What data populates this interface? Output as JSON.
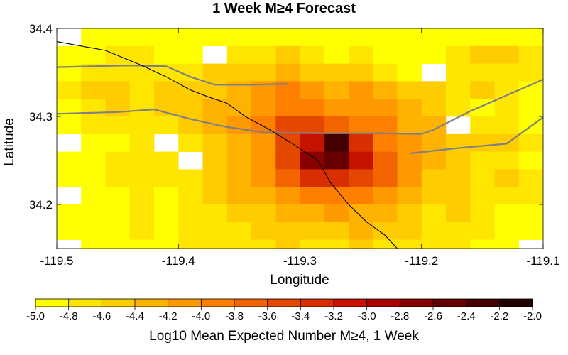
{
  "chart_data": {
    "type": "heatmap",
    "title": "1 Week M≥4 Forecast",
    "xlabel": "Longitude",
    "ylabel": "Latitude",
    "xlim": [
      -119.5,
      -119.1
    ],
    "ylim": [
      34.15,
      34.4
    ],
    "x_ticks": [
      "-119.5",
      "-119.4",
      "-119.3",
      "-119.2",
      "-119.1"
    ],
    "y_ticks": [
      "34.4",
      "34.3",
      "34.2"
    ],
    "x_tick_values": [
      -119.5,
      -119.4,
      -119.3,
      -119.2,
      -119.1
    ],
    "y_tick_values": [
      34.4,
      34.3,
      34.2
    ],
    "cell_size_deg": 0.02,
    "colorbar": {
      "label": "Log10 Mean Expected Number M≥4, 1 Week",
      "ticks": [
        "-5.0",
        "-4.8",
        "-4.6",
        "-4.4",
        "-4.2",
        "-4.0",
        "-3.8",
        "-3.6",
        "-3.4",
        "-3.2",
        "-3.0",
        "-2.8",
        "-2.6",
        "-2.4",
        "-2.2",
        "-2.0"
      ],
      "min": -5.0,
      "max": -2.0,
      "step": 0.2,
      "colors": [
        "#ffff00",
        "#ffe600",
        "#ffcc00",
        "#ffb300",
        "#ff9900",
        "#ff7f00",
        "#f36400",
        "#e44800",
        "#d82e00",
        "#c81200",
        "#aa0000",
        "#880000",
        "#660000",
        "#440000",
        "#220000"
      ]
    },
    "grid_note": "rows from north (lat 34.40) to south, columns from west (lon -119.50) to east; value null = no color",
    "grid": [
      [
        null,
        -4.9,
        -4.9,
        -4.9,
        -4.9,
        -4.9,
        -4.9,
        -4.9,
        -4.9,
        -4.9,
        -4.9,
        -4.9,
        -4.9,
        -4.9,
        -4.9,
        -4.9,
        -4.9,
        -4.9,
        -4.9,
        -4.9
      ],
      [
        -4.9,
        -4.9,
        -4.7,
        -4.7,
        -4.9,
        -4.9,
        null,
        -4.7,
        -4.7,
        -4.5,
        -4.7,
        -4.9,
        -4.7,
        -4.9,
        -4.9,
        -4.9,
        -4.7,
        -4.5,
        -4.5,
        -4.7
      ],
      [
        -4.9,
        -4.7,
        -4.7,
        -4.7,
        -4.7,
        -4.7,
        -4.5,
        -4.5,
        -4.5,
        -4.3,
        -4.5,
        -4.5,
        -4.5,
        -4.7,
        -4.9,
        null,
        -4.7,
        -4.7,
        -4.7,
        -4.7
      ],
      [
        -4.7,
        -4.5,
        -4.5,
        -4.7,
        -4.5,
        -4.5,
        -4.5,
        -4.3,
        -4.1,
        -3.9,
        -4.1,
        -4.3,
        -4.1,
        -4.3,
        -4.5,
        -4.5,
        -4.7,
        -4.5,
        -4.7,
        -4.9
      ],
      [
        -4.9,
        -4.7,
        -4.5,
        -4.7,
        -4.5,
        -4.5,
        -4.3,
        -4.3,
        -4.1,
        -3.9,
        -3.9,
        -4.1,
        -4.1,
        -4.1,
        -4.3,
        -4.5,
        -4.7,
        -4.9,
        -4.7,
        -4.9
      ],
      [
        -4.9,
        -4.7,
        -4.7,
        -4.7,
        -4.7,
        -4.5,
        -4.3,
        -4.1,
        -3.9,
        -3.5,
        -3.5,
        -3.7,
        -3.9,
        -3.9,
        -4.3,
        -4.3,
        null,
        -4.7,
        -4.7,
        -4.9
      ],
      [
        null,
        -4.9,
        -4.9,
        -4.7,
        null,
        -4.7,
        -4.5,
        -4.3,
        -4.1,
        -3.5,
        -3.1,
        -2.3,
        -3.3,
        -3.9,
        -4.1,
        -4.3,
        -4.5,
        -4.5,
        -4.5,
        -4.7
      ],
      [
        -4.9,
        -4.9,
        -4.7,
        -4.7,
        -4.7,
        null,
        -4.5,
        -4.3,
        -4.1,
        -3.5,
        -2.7,
        -2.5,
        -3.1,
        -3.7,
        -4.1,
        -4.3,
        -4.5,
        -4.7,
        -4.7,
        -4.9
      ],
      [
        -4.9,
        -4.9,
        -4.7,
        -4.7,
        -4.7,
        -4.7,
        -4.5,
        -4.3,
        -4.1,
        -3.7,
        -3.3,
        -3.3,
        -3.5,
        -3.7,
        -4.1,
        -4.5,
        -4.5,
        -4.7,
        -4.5,
        -4.7
      ],
      [
        null,
        -4.9,
        -4.9,
        -4.7,
        -4.9,
        -4.7,
        -4.5,
        -4.3,
        -4.3,
        -4.1,
        -3.9,
        -3.9,
        -3.9,
        -4.1,
        -4.3,
        -4.5,
        -4.5,
        -4.7,
        -4.7,
        -4.7
      ],
      [
        -4.9,
        -4.9,
        -4.9,
        -4.7,
        -4.9,
        -4.7,
        -4.7,
        -4.5,
        -4.5,
        -4.3,
        -4.3,
        -4.1,
        -4.3,
        -4.3,
        -4.5,
        -4.7,
        -4.5,
        -4.7,
        -4.9,
        -4.9
      ],
      [
        -4.9,
        -4.9,
        -4.9,
        -4.7,
        -4.9,
        -4.7,
        -4.7,
        -4.7,
        -4.5,
        -4.5,
        -4.5,
        -4.5,
        -4.3,
        -4.5,
        -4.5,
        -4.7,
        -4.7,
        -4.7,
        -4.9,
        -4.9
      ],
      [
        null,
        -4.9,
        -4.9,
        -4.9,
        -4.9,
        -4.7,
        -4.7,
        -4.7,
        -4.7,
        -4.5,
        -4.7,
        -4.7,
        -4.5,
        -4.7,
        -4.7,
        -4.7,
        -4.7,
        -4.9,
        -4.9,
        null
      ],
      [
        -4.9,
        -4.9,
        -4.9,
        -4.9,
        -4.9,
        -4.9,
        -4.9,
        -4.9,
        -4.9,
        -4.7,
        -4.7,
        -4.9,
        -4.7,
        -4.7,
        -4.9,
        -4.9,
        -4.9,
        -4.9,
        -4.9,
        -4.9
      ],
      [
        -4.9,
        -4.9,
        -4.9,
        -4.9,
        -4.9,
        -4.9,
        -4.9,
        -4.9,
        -4.9,
        -4.9,
        -4.9,
        -4.9,
        -4.9,
        -4.9,
        -4.9,
        -4.9,
        -4.9,
        -4.9,
        -4.9,
        -4.9
      ]
    ],
    "map_lines": {
      "coastline": [
        [
          -119.5,
          34.385
        ],
        [
          -119.46,
          34.375
        ],
        [
          -119.43,
          34.358
        ],
        [
          -119.41,
          34.345
        ],
        [
          -119.39,
          34.33
        ],
        [
          -119.375,
          34.322
        ],
        [
          -119.36,
          34.315
        ],
        [
          -119.345,
          34.3
        ],
        [
          -119.325,
          34.285
        ],
        [
          -119.305,
          34.268
        ],
        [
          -119.285,
          34.25
        ],
        [
          -119.275,
          34.225
        ],
        [
          -119.26,
          34.2
        ],
        [
          -119.245,
          34.18
        ],
        [
          -119.23,
          34.165
        ],
        [
          -119.22,
          34.15
        ]
      ],
      "faults": [
        [
          [
            -119.5,
            34.356
          ],
          [
            -119.47,
            34.357
          ],
          [
            -119.44,
            34.358
          ],
          [
            -119.41,
            34.357
          ],
          [
            -119.39,
            34.345
          ],
          [
            -119.37,
            34.336
          ],
          [
            -119.34,
            34.336
          ],
          [
            -119.31,
            34.337
          ]
        ],
        [
          [
            -119.5,
            34.303
          ],
          [
            -119.45,
            34.305
          ],
          [
            -119.42,
            34.308
          ],
          [
            -119.39,
            34.297
          ],
          [
            -119.36,
            34.288
          ],
          [
            -119.33,
            34.282
          ],
          [
            -119.28,
            34.281
          ],
          [
            -119.24,
            34.281
          ],
          [
            -119.2,
            34.28
          ],
          [
            -119.19,
            34.285
          ],
          [
            -119.16,
            34.306
          ],
          [
            -119.13,
            34.324
          ],
          [
            -119.1,
            34.342
          ]
        ],
        [
          [
            -119.21,
            34.258
          ],
          [
            -119.17,
            34.264
          ],
          [
            -119.13,
            34.269
          ],
          [
            -119.1,
            34.299
          ]
        ]
      ]
    }
  }
}
